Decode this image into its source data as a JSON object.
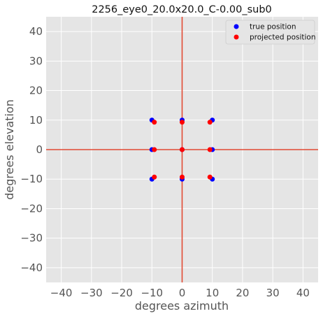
{
  "chart_data": {
    "type": "scatter",
    "title": "2256_eye0_20.0x20.0_C-0.00_sub0",
    "xlabel": "degrees azimuth",
    "ylabel": "degrees elevation",
    "xlim": [
      -45,
      45
    ],
    "ylim": [
      -45,
      45
    ],
    "xticks": [
      -40,
      -30,
      -20,
      -10,
      0,
      10,
      20,
      30,
      40
    ],
    "yticks": [
      -40,
      -30,
      -20,
      -10,
      0,
      10,
      20,
      30,
      40
    ],
    "xtick_labels": [
      "−40",
      "−30",
      "−20",
      "−10",
      "0",
      "10",
      "20",
      "30",
      "40"
    ],
    "ytick_labels": [
      "−40",
      "−30",
      "−20",
      "−10",
      "0",
      "10",
      "20",
      "30",
      "40"
    ],
    "grid": true,
    "crosshair": {
      "x": 0,
      "y": 0,
      "color": "#e24a33"
    },
    "legend_position": "top-right",
    "series": [
      {
        "name": "true position",
        "color": "#0000ff",
        "points": [
          [
            -10,
            10
          ],
          [
            0,
            10
          ],
          [
            10,
            10
          ],
          [
            -10,
            0
          ],
          [
            0,
            0
          ],
          [
            10,
            0
          ],
          [
            -10,
            -10
          ],
          [
            0,
            -10
          ],
          [
            10,
            -10
          ]
        ]
      },
      {
        "name": "projected position",
        "color": "#ff0000",
        "points": [
          [
            -9.2,
            9.3
          ],
          [
            0,
            9.3
          ],
          [
            9.2,
            9.3
          ],
          [
            -9.2,
            0
          ],
          [
            0,
            0
          ],
          [
            9.2,
            0
          ],
          [
            -9.2,
            -9.3
          ],
          [
            0,
            -9.3
          ],
          [
            9.2,
            -9.3
          ]
        ]
      }
    ]
  }
}
